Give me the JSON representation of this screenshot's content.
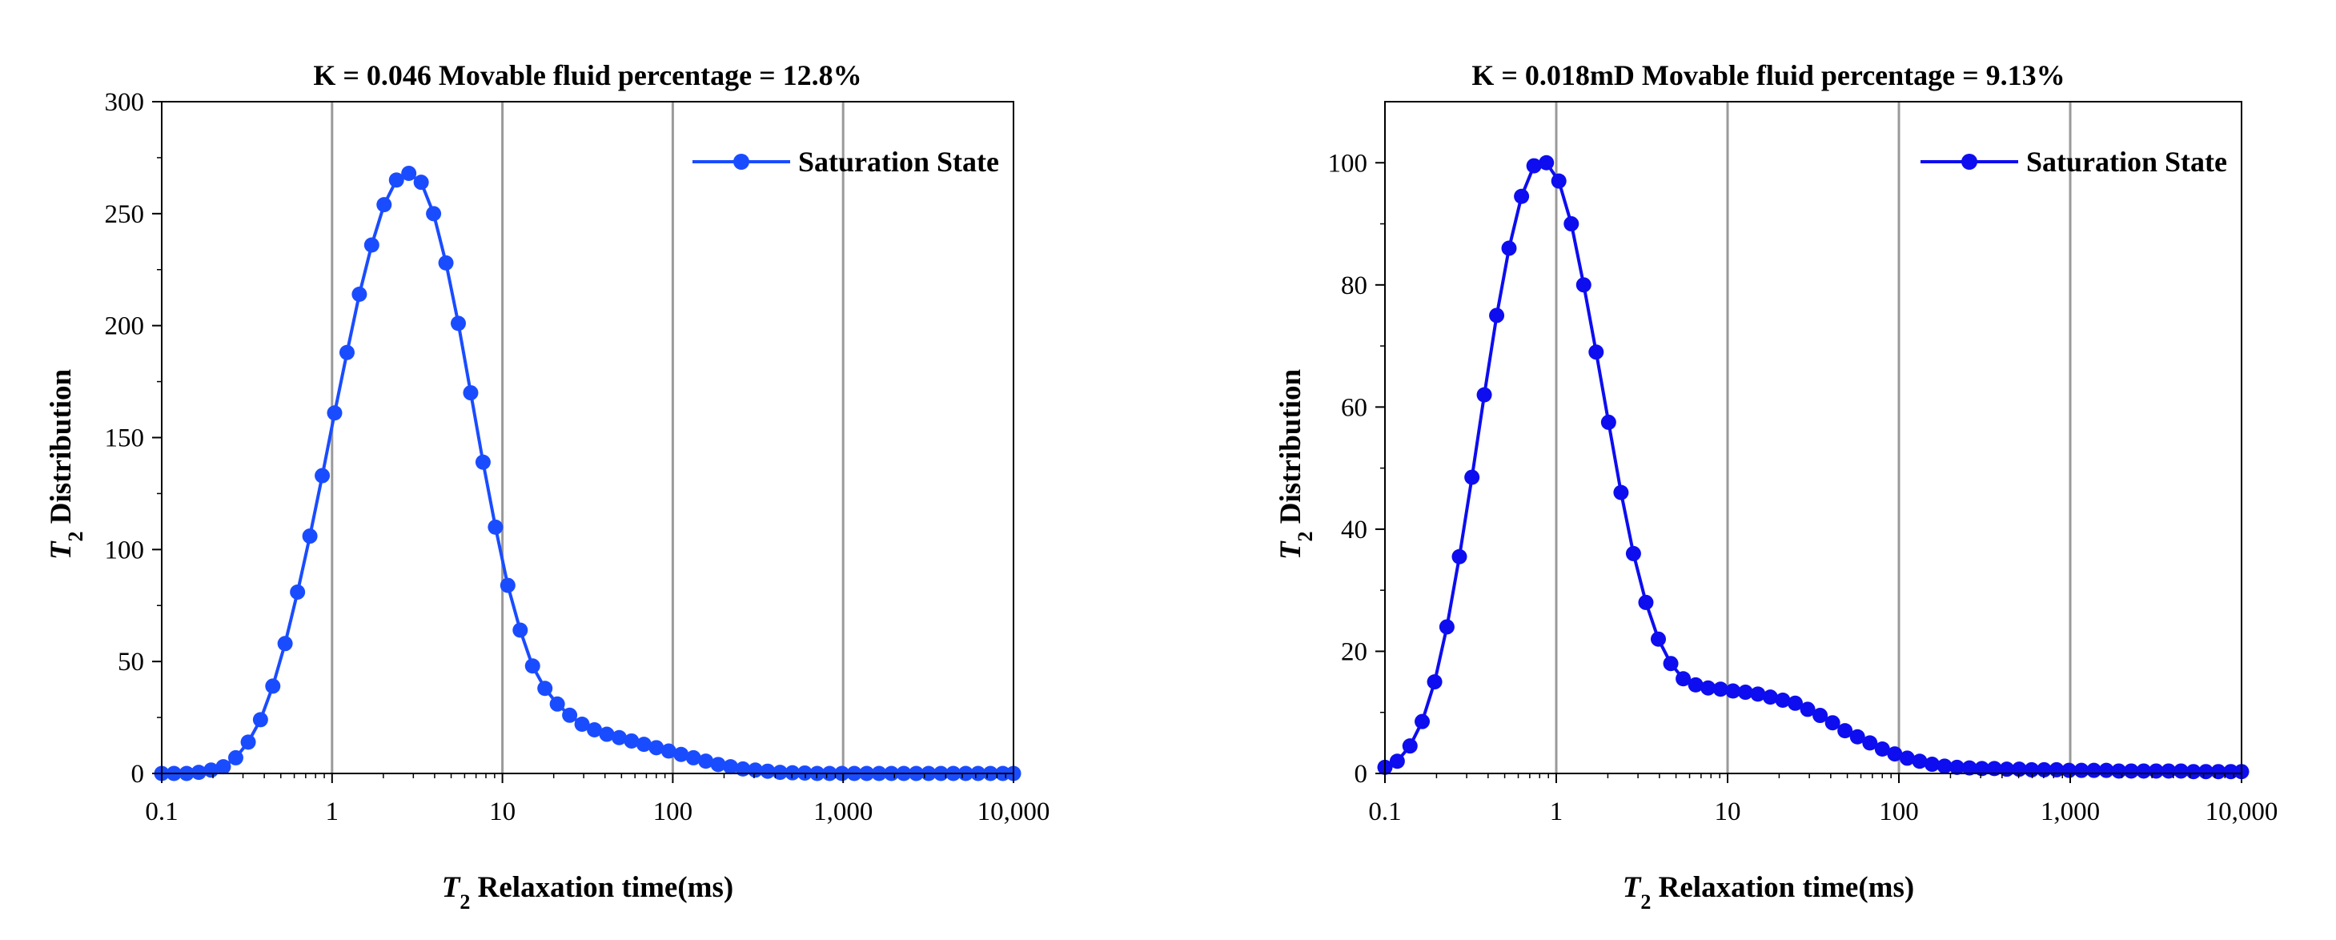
{
  "figure": {
    "colors": {
      "series_left": "#1a4cff",
      "series_right": "#0d0df0",
      "grid": "#9a9a9a",
      "axis": "#000000"
    }
  },
  "chart_data": [
    {
      "type": "line",
      "title": "K = 0.046  Movable fluid percentage = 12.8%",
      "xlabel_italic": "T",
      "xlabel_sub": "2",
      "xlabel_rest": " Relaxation time(ms)",
      "ylabel_italic": "T",
      "ylabel_sub": "2",
      "ylabel_rest": " Distribution",
      "xscale": "log",
      "xlim": [
        0.1,
        10000
      ],
      "ylim": [
        0,
        300
      ],
      "xticks": [
        0.1,
        1,
        10,
        100,
        1000,
        10000
      ],
      "xtick_labels": [
        "0.1",
        "1",
        "10",
        "100",
        "1,000",
        "10,000"
      ],
      "yticks": [
        0,
        50,
        100,
        150,
        200,
        250,
        300
      ],
      "ytick_labels": [
        "0",
        "50",
        "100",
        "150",
        "200",
        "250",
        "300"
      ],
      "ytick_minor_step": 25,
      "vertical_gridlines": [
        1,
        10,
        100,
        1000
      ],
      "legend": "top-right",
      "series": [
        {
          "name": "Saturation State",
          "x": [
            0.1,
            0.118,
            0.14,
            0.165,
            0.195,
            0.23,
            0.272,
            0.322,
            0.38,
            0.449,
            0.53,
            0.627,
            0.741,
            0.876,
            1.035,
            1.224,
            1.446,
            1.709,
            2.02,
            2.388,
            2.822,
            3.336,
            3.943,
            4.661,
            5.509,
            6.512,
            7.697,
            9.099,
            10.755,
            12.714,
            15.028,
            17.764,
            20.998,
            24.821,
            29.34,
            34.682,
            40.997,
            48.461,
            57.285,
            67.715,
            80.043,
            94.617,
            111.844,
            132.207,
            156.277,
            184.73,
            218.363,
            258.12,
            305.116,
            360.668,
            426.335,
            503.957,
            595.714,
            704.174,
            832.382,
            983.933,
            1163.077,
            1374.837,
            1625.15,
            1921.036,
            2270.791,
            2684.225,
            3172.935,
            3750.623,
            4433.492,
            5240.687,
            6194.85,
            7322.733,
            8656.106,
            10000
          ],
          "values": [
            0,
            0,
            0,
            0.5,
            1.5,
            3,
            7,
            14,
            24,
            39,
            58,
            81,
            106,
            133,
            161,
            188,
            214,
            236,
            254,
            265,
            268,
            264,
            250,
            228,
            201,
            170,
            139,
            110,
            84,
            64,
            48,
            38,
            31,
            26,
            22,
            19.5,
            17.5,
            16,
            14.5,
            13,
            11.5,
            10,
            8.5,
            7,
            5.5,
            4,
            3,
            2,
            1.5,
            1,
            0.5,
            0.3,
            0.2,
            0,
            0,
            0,
            0,
            0,
            0,
            0,
            0,
            0,
            0,
            0,
            0,
            0,
            0,
            0,
            0,
            0
          ]
        }
      ]
    },
    {
      "type": "line",
      "title": "K = 0.018mD  Movable fluid percentage = 9.13%",
      "xlabel_italic": "T",
      "xlabel_sub": "2",
      "xlabel_rest": " Relaxation time(ms)",
      "ylabel_italic": "T",
      "ylabel_sub": "2",
      "ylabel_rest": " Distribution",
      "xscale": "log",
      "xlim": [
        0.1,
        10000
      ],
      "ylim": [
        0,
        110
      ],
      "xticks": [
        0.1,
        1,
        10,
        100,
        1000,
        10000
      ],
      "xtick_labels": [
        "0.1",
        "1",
        "10",
        "100",
        "1,000",
        "10,000"
      ],
      "yticks": [
        0,
        20,
        40,
        60,
        80,
        100
      ],
      "ytick_labels": [
        "0",
        "20",
        "40",
        "60",
        "80",
        "100"
      ],
      "ytick_minor_step": 10,
      "vertical_gridlines": [
        1,
        10,
        100,
        1000
      ],
      "legend": "top-right",
      "series": [
        {
          "name": "Saturation State",
          "x": [
            0.1,
            0.118,
            0.14,
            0.165,
            0.195,
            0.23,
            0.272,
            0.322,
            0.38,
            0.449,
            0.53,
            0.627,
            0.741,
            0.876,
            1.035,
            1.224,
            1.446,
            1.709,
            2.02,
            2.388,
            2.822,
            3.336,
            3.943,
            4.661,
            5.509,
            6.512,
            7.697,
            9.099,
            10.755,
            12.714,
            15.028,
            17.764,
            20.998,
            24.821,
            29.34,
            34.682,
            40.997,
            48.461,
            57.285,
            67.715,
            80.043,
            94.617,
            111.844,
            132.207,
            156.277,
            184.73,
            218.363,
            258.12,
            305.116,
            360.668,
            426.335,
            503.957,
            595.714,
            704.174,
            832.382,
            983.933,
            1163.077,
            1374.837,
            1625.15,
            1921.036,
            2270.791,
            2684.225,
            3172.935,
            3750.623,
            4433.492,
            5240.687,
            6194.85,
            7322.733,
            8656.106,
            10000
          ],
          "values": [
            1,
            2,
            4.5,
            8.5,
            15,
            24,
            35.5,
            48.5,
            62,
            75,
            86,
            94.5,
            99.5,
            100,
            97,
            90,
            80,
            69,
            57.5,
            46,
            36,
            28,
            22,
            18,
            15.5,
            14.5,
            14,
            13.8,
            13.5,
            13.3,
            13,
            12.5,
            12,
            11.5,
            10.5,
            9.5,
            8.3,
            7,
            6,
            5,
            4,
            3.2,
            2.5,
            2,
            1.5,
            1.2,
            1,
            0.9,
            0.8,
            0.8,
            0.7,
            0.7,
            0.6,
            0.6,
            0.6,
            0.5,
            0.5,
            0.5,
            0.5,
            0.4,
            0.4,
            0.4,
            0.4,
            0.4,
            0.4,
            0.3,
            0.3,
            0.3,
            0.3,
            0.3
          ]
        }
      ]
    }
  ]
}
